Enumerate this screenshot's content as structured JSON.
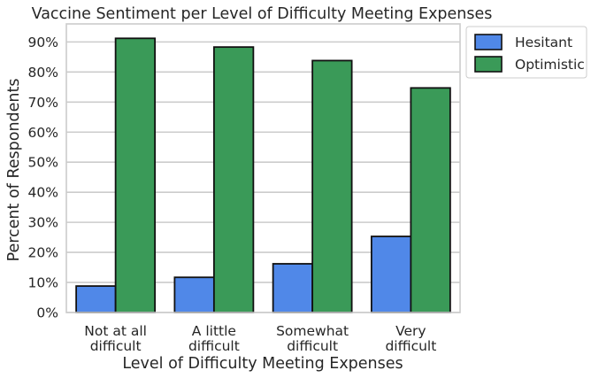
{
  "chart_data": {
    "type": "bar",
    "title": "Vaccine Sentiment per Level of Difficulty Meeting Expenses",
    "xlabel": "Level of Difficulty Meeting Expenses",
    "ylabel": "Percent of Respondents",
    "categories": [
      [
        "Not at all",
        "difficult"
      ],
      [
        "A little",
        "difficult"
      ],
      [
        "Somewhat",
        "difficult"
      ],
      [
        "Very",
        "difficult"
      ]
    ],
    "series": [
      {
        "name": "Hesitant",
        "color": "#5088e8",
        "values": [
          8.8,
          11.7,
          16.2,
          25.3
        ]
      },
      {
        "name": "Optimistic",
        "color": "#3a9a58",
        "values": [
          91.2,
          88.3,
          83.8,
          74.7
        ]
      }
    ],
    "yticks": [
      "0%",
      "10%",
      "20%",
      "30%",
      "40%",
      "50%",
      "60%",
      "70%",
      "80%",
      "90%"
    ],
    "ylim": [
      0,
      96
    ],
    "grid": true,
    "legend_position": "outside-right-top"
  }
}
